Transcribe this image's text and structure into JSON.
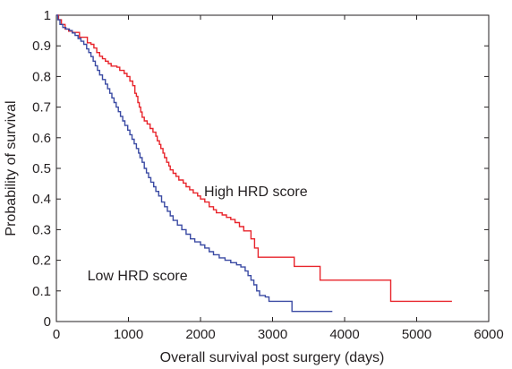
{
  "chart_data": {
    "type": "line",
    "xlabel": "Overall survival post surgery (days)",
    "ylabel": "Probability of survival",
    "xlim": [
      0,
      6000
    ],
    "ylim": [
      0,
      1
    ],
    "x_ticks": [
      "0",
      "1000",
      "2000",
      "3000",
      "4000",
      "5000",
      "6000"
    ],
    "y_ticks": [
      "0",
      "0.1",
      "0.2",
      "0.3",
      "0.4",
      "0.5",
      "0.6",
      "0.7",
      "0.8",
      "0.9",
      "1"
    ],
    "grid": false,
    "series": [
      {
        "name": "High HRD score",
        "color": "#e8242b",
        "points": [
          [
            0,
            1.0
          ],
          [
            30,
            0.985
          ],
          [
            70,
            0.97
          ],
          [
            120,
            0.955
          ],
          [
            170,
            0.948
          ],
          [
            220,
            0.944
          ],
          [
            300,
            0.944
          ],
          [
            320,
            0.928
          ],
          [
            400,
            0.928
          ],
          [
            430,
            0.91
          ],
          [
            480,
            0.905
          ],
          [
            520,
            0.893
          ],
          [
            560,
            0.878
          ],
          [
            600,
            0.866
          ],
          [
            640,
            0.858
          ],
          [
            680,
            0.85
          ],
          [
            720,
            0.842
          ],
          [
            760,
            0.834
          ],
          [
            840,
            0.83
          ],
          [
            880,
            0.82
          ],
          [
            940,
            0.81
          ],
          [
            980,
            0.8
          ],
          [
            1020,
            0.785
          ],
          [
            1060,
            0.77
          ],
          [
            1090,
            0.745
          ],
          [
            1110,
            0.735
          ],
          [
            1130,
            0.715
          ],
          [
            1150,
            0.7
          ],
          [
            1170,
            0.684
          ],
          [
            1190,
            0.667
          ],
          [
            1220,
            0.655
          ],
          [
            1260,
            0.645
          ],
          [
            1300,
            0.63
          ],
          [
            1340,
            0.618
          ],
          [
            1380,
            0.605
          ],
          [
            1400,
            0.59
          ],
          [
            1430,
            0.578
          ],
          [
            1450,
            0.565
          ],
          [
            1480,
            0.55
          ],
          [
            1500,
            0.535
          ],
          [
            1530,
            0.52
          ],
          [
            1560,
            0.508
          ],
          [
            1580,
            0.495
          ],
          [
            1620,
            0.484
          ],
          [
            1660,
            0.474
          ],
          [
            1700,
            0.462
          ],
          [
            1760,
            0.452
          ],
          [
            1800,
            0.44
          ],
          [
            1850,
            0.43
          ],
          [
            1900,
            0.42
          ],
          [
            1960,
            0.41
          ],
          [
            2000,
            0.4
          ],
          [
            2060,
            0.39
          ],
          [
            2120,
            0.375
          ],
          [
            2180,
            0.365
          ],
          [
            2220,
            0.355
          ],
          [
            2300,
            0.348
          ],
          [
            2360,
            0.34
          ],
          [
            2420,
            0.333
          ],
          [
            2480,
            0.323
          ],
          [
            2540,
            0.31
          ],
          [
            2600,
            0.296
          ],
          [
            2660,
            0.296
          ],
          [
            2700,
            0.27
          ],
          [
            2750,
            0.24
          ],
          [
            2800,
            0.21
          ],
          [
            3300,
            0.21
          ],
          [
            3300,
            0.18
          ],
          [
            3600,
            0.18
          ],
          [
            3660,
            0.135
          ],
          [
            4620,
            0.135
          ],
          [
            4640,
            0.066
          ],
          [
            5490,
            0.066
          ]
        ]
      },
      {
        "name": "Low HRD score",
        "color": "#3a4aa3",
        "points": [
          [
            0,
            1.0
          ],
          [
            20,
            0.985
          ],
          [
            50,
            0.97
          ],
          [
            90,
            0.96
          ],
          [
            130,
            0.955
          ],
          [
            180,
            0.95
          ],
          [
            220,
            0.942
          ],
          [
            260,
            0.934
          ],
          [
            300,
            0.924
          ],
          [
            340,
            0.915
          ],
          [
            380,
            0.905
          ],
          [
            420,
            0.89
          ],
          [
            450,
            0.878
          ],
          [
            480,
            0.865
          ],
          [
            510,
            0.85
          ],
          [
            540,
            0.835
          ],
          [
            570,
            0.82
          ],
          [
            600,
            0.805
          ],
          [
            640,
            0.79
          ],
          [
            680,
            0.775
          ],
          [
            710,
            0.76
          ],
          [
            740,
            0.745
          ],
          [
            770,
            0.73
          ],
          [
            800,
            0.715
          ],
          [
            830,
            0.7
          ],
          [
            860,
            0.685
          ],
          [
            890,
            0.67
          ],
          [
            920,
            0.655
          ],
          [
            950,
            0.64
          ],
          [
            990,
            0.625
          ],
          [
            1020,
            0.61
          ],
          [
            1050,
            0.595
          ],
          [
            1080,
            0.58
          ],
          [
            1110,
            0.565
          ],
          [
            1140,
            0.55
          ],
          [
            1160,
            0.535
          ],
          [
            1190,
            0.52
          ],
          [
            1220,
            0.5
          ],
          [
            1250,
            0.485
          ],
          [
            1280,
            0.47
          ],
          [
            1310,
            0.455
          ],
          [
            1350,
            0.44
          ],
          [
            1380,
            0.425
          ],
          [
            1420,
            0.41
          ],
          [
            1460,
            0.39
          ],
          [
            1500,
            0.375
          ],
          [
            1540,
            0.36
          ],
          [
            1580,
            0.345
          ],
          [
            1620,
            0.33
          ],
          [
            1680,
            0.315
          ],
          [
            1740,
            0.3
          ],
          [
            1800,
            0.285
          ],
          [
            1860,
            0.27
          ],
          [
            1920,
            0.26
          ],
          [
            2000,
            0.25
          ],
          [
            2060,
            0.24
          ],
          [
            2120,
            0.228
          ],
          [
            2180,
            0.218
          ],
          [
            2260,
            0.208
          ],
          [
            2340,
            0.2
          ],
          [
            2420,
            0.192
          ],
          [
            2500,
            0.185
          ],
          [
            2560,
            0.178
          ],
          [
            2620,
            0.165
          ],
          [
            2660,
            0.15
          ],
          [
            2700,
            0.135
          ],
          [
            2740,
            0.12
          ],
          [
            2780,
            0.1
          ],
          [
            2820,
            0.085
          ],
          [
            2900,
            0.08
          ],
          [
            2950,
            0.066
          ],
          [
            3250,
            0.066
          ],
          [
            3270,
            0.033
          ],
          [
            3830,
            0.033
          ]
        ]
      }
    ],
    "annotations": [
      {
        "text": "High HRD score",
        "x": 2050,
        "y": 0.41
      },
      {
        "text": "Low HRD score",
        "x": 430,
        "y": 0.135
      }
    ]
  }
}
